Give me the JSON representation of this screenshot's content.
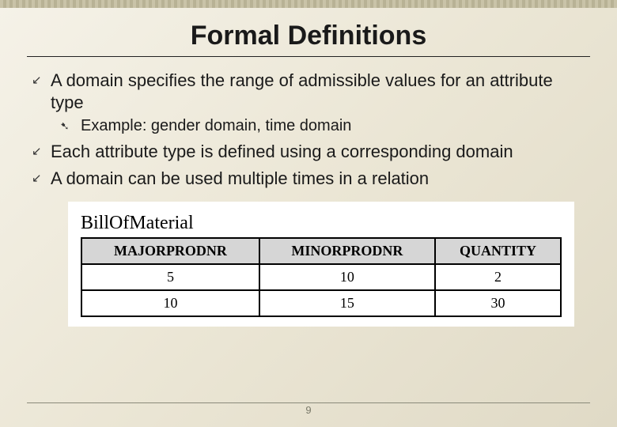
{
  "title": "Formal Definitions",
  "bullets": [
    {
      "level": 1,
      "text": "A domain specifies the range of admissible values for an attribute type"
    },
    {
      "level": 2,
      "text": "Example: gender domain, time domain"
    },
    {
      "level": 1,
      "text": "Each attribute type is defined using a corresponding domain"
    },
    {
      "level": 1,
      "text": "A domain can be used multiple times in a relation"
    }
  ],
  "table": {
    "caption": "BillOfMaterial",
    "columns": [
      "MAJORPRODNR",
      "MINORPRODNR",
      "QUANTITY"
    ],
    "rows": [
      [
        "5",
        "10",
        "2"
      ],
      [
        "10",
        "15",
        "30"
      ]
    ],
    "header_bg": "#d6d6d6",
    "border_color": "#000000",
    "cell_bg": "#ffffff"
  },
  "page_number": "9",
  "icons": {
    "arrow": "↙",
    "pin": "➷"
  },
  "styling": {
    "slide_bg_from": "#f5f2e8",
    "slide_bg_to": "#e0dac6",
    "title_fontsize": 34,
    "bullet1_fontsize": 22,
    "bullet2_fontsize": 20,
    "table_title_fontsize": 24,
    "table_header_fontsize": 18,
    "table_cell_fontsize": 18
  }
}
